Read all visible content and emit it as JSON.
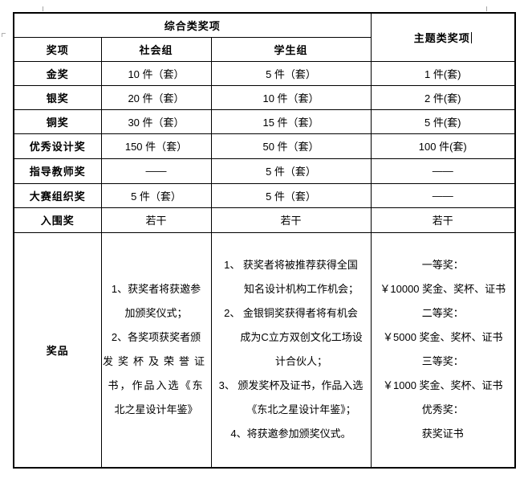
{
  "colors": {
    "background": "#ffffff",
    "table_border": "#000000",
    "text": "#000000",
    "cursor": "#000000",
    "formatting_mark": "#a6a6a6"
  },
  "table": {
    "header": {
      "comprehensive": "综合类奖项",
      "theme": "主题类奖项",
      "sub": {
        "award": "奖项",
        "social": "社会组",
        "student": "学生组"
      }
    },
    "rows": [
      {
        "label": "金奖",
        "social": "10 件（套）",
        "student": "5 件（套）",
        "theme": "1 件(套)"
      },
      {
        "label": "银奖",
        "social": "20 件（套）",
        "student": "10 件（套）",
        "theme": "2 件(套)"
      },
      {
        "label": "铜奖",
        "social": "30 件（套）",
        "student": "15 件（套）",
        "theme": "5 件(套)"
      },
      {
        "label": "优秀设计奖",
        "social": "150 件（套）",
        "student": "50 件（套）",
        "theme": "100 件(套)"
      },
      {
        "label": "指导教师奖",
        "social": "——",
        "student": "5 件（套）",
        "theme": "——"
      },
      {
        "label": "大赛组织奖",
        "social": "5 件（套）",
        "student": "5 件（套）",
        "theme": "——"
      },
      {
        "label": "入围奖",
        "social": "若干",
        "student": "若干",
        "theme": "若干"
      }
    ],
    "prize_row": {
      "label": "奖品",
      "social_lines": [
        "1、获奖者将获邀参",
        "加颁奖仪式；",
        "2、各奖项获奖者颁",
        {
          "t": "发奖杯及荣誉证",
          "cls": "sp5"
        },
        {
          "t": "书，作品入选《东",
          "cls": "sp2"
        },
        "北之星设计年鉴》"
      ],
      "student_lines": [
        "1、 获奖者将被推荐获得全国",
        {
          "t": "知名设计机构工作机会；",
          "cls": "indent"
        },
        "2、 金银铜奖获得者将有机会",
        {
          "t": "成为C立方双创文化工场设",
          "cls": "indent"
        },
        {
          "t": "计合伙人；",
          "cls": "indent"
        },
        "3、 颁发奖杯及证书，作品入选",
        {
          "t": "《东北之星设计年鉴》；",
          "cls": "indent"
        },
        "4、将获邀参加颁奖仪式。"
      ],
      "theme_lines": [
        "一等奖：",
        "￥10000 奖金、奖杯、证书",
        "二等奖：",
        "￥5000 奖金、奖杯、证书",
        "三等奖：",
        "￥1000 奖金、奖杯、证书",
        "优秀奖：",
        "获奖证书"
      ]
    }
  }
}
